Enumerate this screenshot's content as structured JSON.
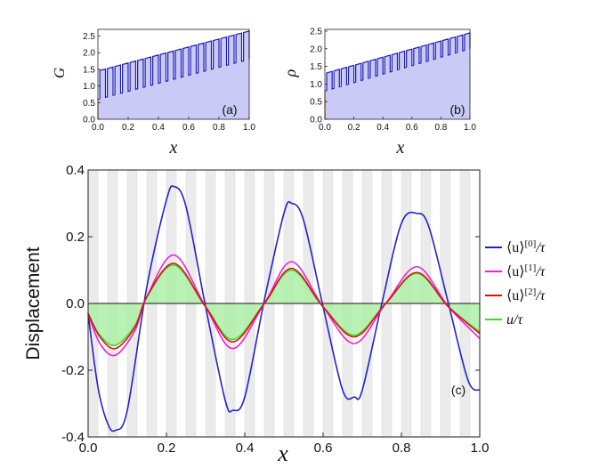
{
  "chart_data": [
    {
      "type": "line",
      "panel": "(a)",
      "ylabel": "G",
      "xlabel": "x",
      "xlim": [
        0,
        1
      ],
      "ylim": [
        0,
        2.7
      ],
      "xticks": [
        "0.0",
        "0.2",
        "0.4",
        "0.6",
        "0.8",
        "1.0"
      ],
      "yticks": [
        "0.0",
        "0.5",
        "1.0",
        "1.5",
        "2.0",
        "2.5"
      ],
      "ytick_values": [
        0,
        0.5,
        1.0,
        1.5,
        2.0,
        2.5
      ],
      "periods": 20,
      "low_start": 0.6,
      "low_end": 1.8,
      "high_start": 1.45,
      "high_end": 2.65,
      "fill_color": "#c9caf5",
      "line_color": "#1c1cb8"
    },
    {
      "type": "line",
      "panel": "(b)",
      "ylabel": "ρ",
      "xlabel": "x",
      "xlim": [
        0,
        1
      ],
      "ylim": [
        0,
        2.55
      ],
      "xticks": [
        "0.0",
        "0.2",
        "0.4",
        "0.6",
        "0.8",
        "1.0"
      ],
      "yticks": [
        "0.0",
        "0.5",
        "1.0",
        "1.5",
        "2.0",
        "2.5"
      ],
      "ytick_values": [
        0,
        0.5,
        1.0,
        1.5,
        2.0,
        2.5
      ],
      "periods": 20,
      "low_start": 0.8,
      "low_end": 2.0,
      "high_start": 1.3,
      "high_end": 2.45,
      "fill_color": "#c9caf5",
      "line_color": "#1c1cb8"
    },
    {
      "type": "line",
      "panel": "(c)",
      "ylabel": "Displacement",
      "xlabel": "x",
      "xlim": [
        0,
        1
      ],
      "ylim": [
        -0.4,
        0.4
      ],
      "xticks": [
        "0.0",
        "0.2",
        "0.4",
        "0.6",
        "0.8",
        "1.0"
      ],
      "xtick_values": [
        0,
        0.2,
        0.4,
        0.6,
        0.8,
        1.0
      ],
      "yticks": [
        "-0.4",
        "-0.2",
        "0.0",
        "0.2",
        "0.4"
      ],
      "ytick_values": [
        -0.4,
        -0.2,
        0,
        0.2,
        0.4
      ],
      "background_stripes": 20,
      "stripe_color": "#ebebeb",
      "series": [
        {
          "name": "⟨u⟩[0]/τ",
          "label_base": "⟨u⟩",
          "label_sup": "[0]",
          "label_tail": "/τ",
          "color": "#2222c8",
          "x": [
            0.0,
            0.025,
            0.05,
            0.07,
            0.1,
            0.15,
            0.2,
            0.22,
            0.25,
            0.3,
            0.35,
            0.37,
            0.4,
            0.45,
            0.5,
            0.52,
            0.55,
            0.6,
            0.65,
            0.68,
            0.7,
            0.75,
            0.8,
            0.84,
            0.87,
            0.92,
            0.97,
            1.0
          ],
          "y": [
            -0.03,
            -0.25,
            -0.36,
            -0.38,
            -0.32,
            0.05,
            0.31,
            0.35,
            0.29,
            -0.01,
            -0.29,
            -0.32,
            -0.28,
            0.01,
            0.27,
            0.3,
            0.25,
            -0.01,
            -0.26,
            -0.28,
            -0.26,
            0.0,
            0.24,
            0.27,
            0.23,
            0.0,
            -0.23,
            -0.26
          ]
        },
        {
          "name": "⟨u⟩[1]/τ",
          "label_base": "⟨u⟩",
          "label_sup": "[1]",
          "label_tail": "/τ",
          "color": "#f020d0",
          "x": [
            0.0,
            0.03,
            0.07,
            0.12,
            0.15,
            0.22,
            0.3,
            0.37,
            0.45,
            0.52,
            0.6,
            0.68,
            0.76,
            0.84,
            0.92,
            1.0
          ],
          "y": [
            -0.03,
            -0.12,
            -0.155,
            -0.08,
            0.02,
            0.145,
            -0.01,
            -0.135,
            0.0,
            0.125,
            -0.01,
            -0.12,
            0.0,
            0.11,
            -0.01,
            -0.105
          ]
        },
        {
          "name": "⟨u⟩[2]/τ",
          "label_base": "⟨u⟩",
          "label_sup": "[2]",
          "label_tail": "/τ",
          "color": "#e01010",
          "x": [
            0.0,
            0.03,
            0.07,
            0.12,
            0.15,
            0.22,
            0.3,
            0.37,
            0.45,
            0.52,
            0.6,
            0.68,
            0.76,
            0.84,
            0.92,
            1.0
          ],
          "y": [
            -0.03,
            -0.1,
            -0.135,
            -0.07,
            0.02,
            0.12,
            -0.01,
            -0.115,
            0.0,
            0.105,
            -0.01,
            -0.1,
            0.0,
            0.093,
            -0.01,
            -0.09
          ]
        },
        {
          "name": "u/τ",
          "label_base": "u",
          "label_sup": "",
          "label_tail": "/τ",
          "color": "#3ddc2a",
          "fill": "#aef0a8",
          "x": [
            0.0,
            0.03,
            0.07,
            0.12,
            0.15,
            0.22,
            0.3,
            0.37,
            0.45,
            0.52,
            0.6,
            0.68,
            0.76,
            0.84,
            0.92,
            1.0
          ],
          "y": [
            -0.03,
            -0.095,
            -0.125,
            -0.065,
            0.02,
            0.115,
            -0.01,
            -0.108,
            0.0,
            0.1,
            -0.01,
            -0.095,
            0.0,
            0.09,
            -0.01,
            -0.085
          ]
        }
      ],
      "legend_position": "right"
    }
  ]
}
